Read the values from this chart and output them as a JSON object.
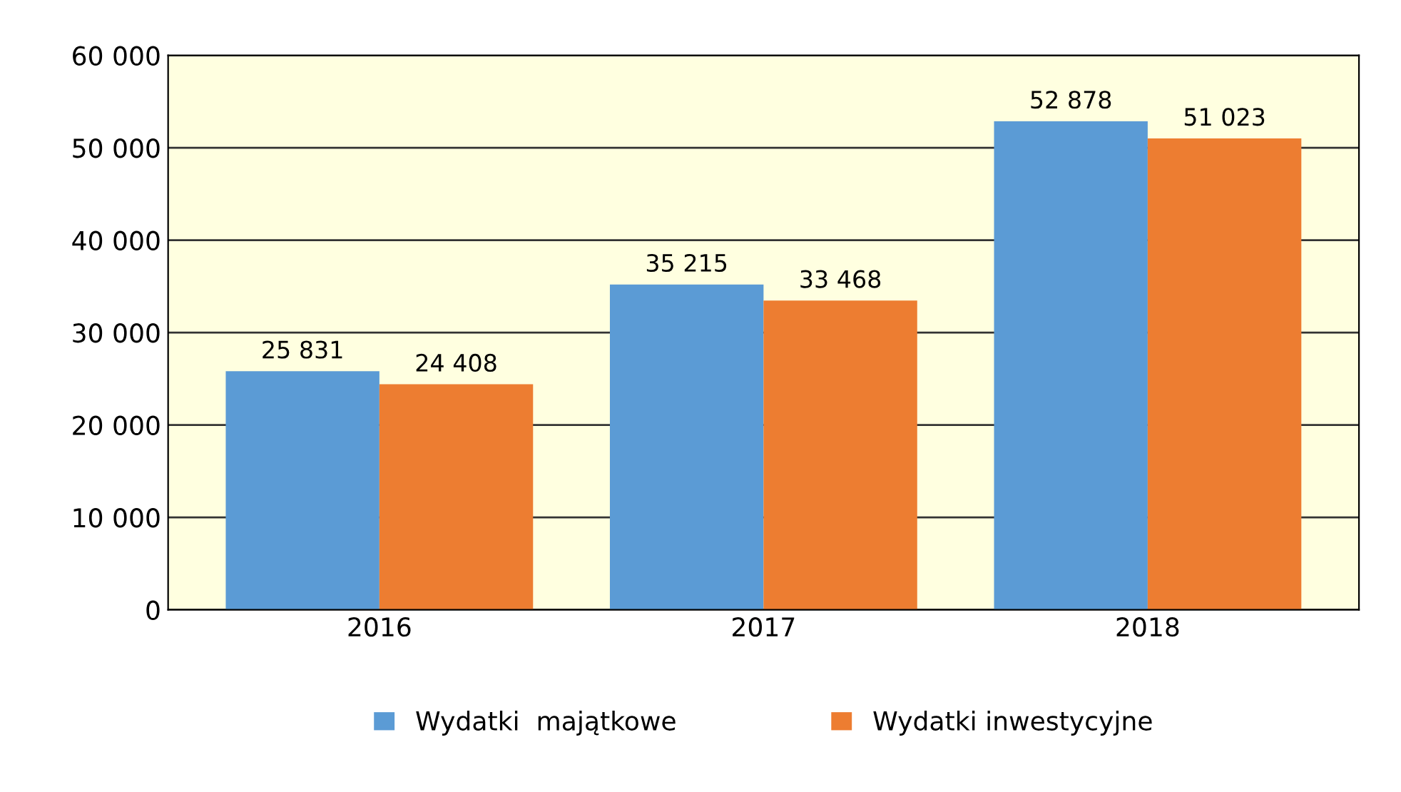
{
  "chart_data": {
    "type": "bar",
    "categories": [
      "2016",
      "2017",
      "2018"
    ],
    "series": [
      {
        "name": "Wydatki  majątkowe",
        "color": "#5b9bd5",
        "values": [
          25831,
          35215,
          52878
        ],
        "value_labels": [
          "25 831",
          "35 215",
          "52 878"
        ]
      },
      {
        "name": "Wydatki inwestycyjne",
        "color": "#ed7d31",
        "values": [
          24408,
          33468,
          51023
        ],
        "value_labels": [
          "24 408",
          "33 468",
          "51 023"
        ]
      }
    ],
    "ylim": [
      0,
      60000
    ],
    "yticks": [
      {
        "value": 0,
        "label": "0"
      },
      {
        "value": 10000,
        "label": "10 000"
      },
      {
        "value": 20000,
        "label": "20 000"
      },
      {
        "value": 30000,
        "label": "30 000"
      },
      {
        "value": 40000,
        "label": "40 000"
      },
      {
        "value": 50000,
        "label": "50 000"
      },
      {
        "value": 60000,
        "label": "60 000"
      }
    ],
    "grid": "y",
    "legend": "bottom"
  }
}
